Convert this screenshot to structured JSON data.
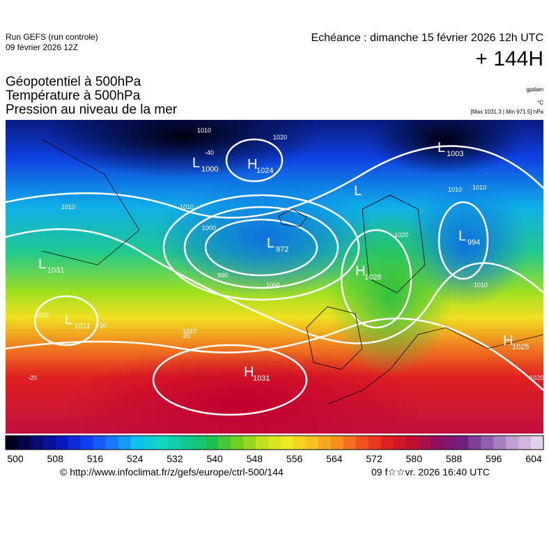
{
  "header": {
    "run": "Run GEFS (run controle)",
    "run_date": "09 février 2026 12Z",
    "valid": "Echéance : dimanche 15 février 2026 12h UTC",
    "lead": "+ 144H"
  },
  "fields": [
    "Géopotentiel à 500hPa",
    "Température à 500hPa",
    "Pression au niveau de la mer"
  ],
  "units": [
    "gpdam",
    "°C",
    "[Max 1031.3 | Min 971.5] hPa"
  ],
  "centers": [
    {
      "letter": "L",
      "value": "1000"
    },
    {
      "letter": "H",
      "value": "1024"
    },
    {
      "letter": "L",
      "value": "1003"
    },
    {
      "letter": "L"
    },
    {
      "letter": "L",
      "value": "972"
    },
    {
      "letter": "L",
      "value": "994"
    },
    {
      "letter": "L",
      "value": "1031"
    },
    {
      "letter": "H",
      "value": "1028"
    },
    {
      "letter": "L",
      "value": "1011"
    },
    {
      "letter": "H",
      "value": "1031"
    },
    {
      "letter": "H",
      "value": "1025"
    }
  ],
  "contour_labels": [
    "1010",
    "1020",
    "1010",
    "1010",
    "1000",
    "990",
    "1000",
    "1010",
    "1020",
    "1010",
    "1010",
    "1020",
    "1010",
    "-30",
    "-20",
    "-20",
    "-40",
    "1020"
  ],
  "colorbar": [
    500,
    508,
    516,
    524,
    532,
    540,
    548,
    556,
    564,
    572,
    580,
    588,
    596,
    604
  ],
  "footer": {
    "url": "© http://www.infoclimat.fr/z/gefs/europe/ctrl-500/144",
    "timestamp": "09 f☆☆vr. 2026 16:40 UTC"
  }
}
